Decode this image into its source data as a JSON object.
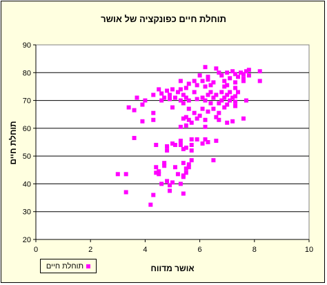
{
  "chart_data": {
    "type": "scatter",
    "title": "תוחלת חיים כפונקציה של אושר",
    "xlabel": "אושר מדווח",
    "ylabel": "תוחלת חיים",
    "xlim": [
      0,
      10
    ],
    "ylim": [
      20,
      90
    ],
    "xticks": [
      "0",
      "2",
      "4",
      "6",
      "8",
      "10"
    ],
    "yticks": [
      "20",
      "30",
      "40",
      "50",
      "60",
      "70",
      "80",
      "90"
    ],
    "grid": "horizontal",
    "legend": "bottom-left",
    "marker_color": "#ff00ff",
    "plot_background": "#ffffff",
    "chart_background": "#ffffe0",
    "series": [
      {
        "name": "תוחלת חיים",
        "points": [
          [
            6.2,
            82.0
          ],
          [
            6.6,
            81.5
          ],
          [
            6.7,
            80.0
          ],
          [
            7.0,
            80.0
          ],
          [
            7.2,
            80.5
          ],
          [
            7.5,
            80.0
          ],
          [
            7.6,
            79.5
          ],
          [
            7.7,
            80.5
          ],
          [
            7.8,
            81.0
          ],
          [
            8.2,
            80.5
          ],
          [
            6.0,
            79.0
          ],
          [
            6.3,
            78.5
          ],
          [
            6.8,
            79.0
          ],
          [
            7.1,
            78.0
          ],
          [
            7.3,
            79.5
          ],
          [
            7.4,
            78.5
          ],
          [
            7.6,
            78.0
          ],
          [
            7.8,
            79.0
          ],
          [
            8.2,
            77.0
          ],
          [
            5.3,
            77.0
          ],
          [
            5.8,
            77.0
          ],
          [
            6.1,
            77.0
          ],
          [
            6.3,
            77.5
          ],
          [
            6.5,
            76.5
          ],
          [
            6.9,
            77.0
          ],
          [
            7.3,
            76.5
          ],
          [
            7.6,
            77.0
          ],
          [
            5.6,
            76.0
          ],
          [
            5.9,
            75.5
          ],
          [
            6.2,
            75.0
          ],
          [
            6.4,
            75.5
          ],
          [
            6.9,
            75.0
          ],
          [
            7.0,
            75.5
          ],
          [
            7.3,
            74.5
          ],
          [
            4.5,
            74.0
          ],
          [
            4.8,
            73.5
          ],
          [
            5.0,
            74.0
          ],
          [
            5.3,
            74.0
          ],
          [
            5.5,
            74.5
          ],
          [
            5.8,
            73.0
          ],
          [
            6.4,
            73.0
          ],
          [
            6.8,
            73.0
          ],
          [
            7.1,
            73.0
          ],
          [
            7.4,
            73.0
          ],
          [
            4.3,
            72.0
          ],
          [
            4.6,
            72.5
          ],
          [
            4.9,
            72.0
          ],
          [
            5.2,
            73.0
          ],
          [
            5.4,
            72.0
          ],
          [
            6.3,
            72.0
          ],
          [
            6.6,
            72.0
          ],
          [
            7.0,
            72.0
          ],
          [
            7.3,
            71.5
          ],
          [
            3.7,
            71.0
          ],
          [
            4.7,
            71.0
          ],
          [
            5.1,
            71.0
          ],
          [
            5.5,
            71.0
          ],
          [
            5.9,
            70.5
          ],
          [
            6.1,
            71.0
          ],
          [
            6.5,
            71.0
          ],
          [
            6.9,
            71.0
          ],
          [
            7.2,
            71.0
          ],
          [
            4.0,
            70.0
          ],
          [
            4.6,
            70.0
          ],
          [
            4.9,
            70.5
          ],
          [
            5.3,
            70.0
          ],
          [
            5.6,
            70.0
          ],
          [
            6.2,
            70.0
          ],
          [
            6.8,
            70.0
          ],
          [
            7.1,
            70.0
          ],
          [
            7.3,
            69.5
          ],
          [
            7.7,
            70.0
          ],
          [
            5.4,
            69.0
          ],
          [
            6.4,
            69.0
          ],
          [
            6.7,
            69.0
          ],
          [
            7.0,
            68.5
          ],
          [
            7.3,
            68.0
          ],
          [
            3.4,
            67.5
          ],
          [
            3.9,
            68.5
          ],
          [
            5.0,
            67.5
          ],
          [
            5.6,
            67.0
          ],
          [
            6.1,
            67.0
          ],
          [
            6.5,
            67.0
          ],
          [
            6.9,
            67.5
          ],
          [
            3.6,
            66.5
          ],
          [
            4.3,
            65.5
          ],
          [
            5.8,
            65.5
          ],
          [
            6.3,
            66.0
          ],
          [
            6.7,
            65.5
          ],
          [
            5.5,
            64.0
          ],
          [
            6.0,
            64.5
          ],
          [
            6.6,
            64.0
          ],
          [
            3.9,
            62.5
          ],
          [
            4.3,
            63.0
          ],
          [
            5.4,
            63.5
          ],
          [
            5.6,
            63.0
          ],
          [
            5.7,
            62.0
          ],
          [
            5.9,
            63.5
          ],
          [
            6.2,
            63.0
          ],
          [
            6.7,
            63.0
          ],
          [
            7.0,
            62.0
          ],
          [
            7.2,
            62.5
          ],
          [
            7.6,
            63.5
          ],
          [
            5.3,
            60.5
          ],
          [
            5.5,
            61.0
          ],
          [
            6.2,
            60.5
          ],
          [
            3.6,
            56.5
          ],
          [
            5.7,
            56.0
          ],
          [
            5.9,
            56.0
          ],
          [
            6.2,
            56.0
          ],
          [
            6.6,
            55.5
          ],
          [
            5.3,
            55.5
          ],
          [
            6.1,
            54.5
          ],
          [
            6.3,
            55.0
          ],
          [
            4.4,
            54.0
          ],
          [
            4.8,
            53.5
          ],
          [
            5.0,
            54.5
          ],
          [
            5.1,
            54.0
          ],
          [
            5.3,
            54.0
          ],
          [
            5.5,
            53.0
          ],
          [
            5.7,
            54.0
          ],
          [
            4.8,
            52.0
          ],
          [
            5.4,
            52.5
          ],
          [
            5.7,
            52.0
          ],
          [
            6.5,
            48.5
          ],
          [
            4.7,
            47.5
          ],
          [
            5.4,
            47.5
          ],
          [
            5.7,
            48.5
          ],
          [
            5.6,
            47.0
          ],
          [
            4.4,
            46.0
          ],
          [
            4.7,
            46.5
          ],
          [
            5.1,
            46.0
          ],
          [
            5.5,
            45.5
          ],
          [
            5.6,
            46.0
          ],
          [
            4.5,
            44.5
          ],
          [
            4.4,
            44.0
          ],
          [
            4.5,
            43.5
          ],
          [
            5.2,
            43.5
          ],
          [
            5.4,
            43.0
          ],
          [
            5.5,
            44.0
          ],
          [
            3.0,
            43.5
          ],
          [
            3.3,
            43.5
          ],
          [
            5.4,
            42.5
          ],
          [
            4.8,
            41.0
          ],
          [
            5.0,
            40.5
          ],
          [
            4.6,
            40.0
          ],
          [
            5.3,
            40.0
          ],
          [
            4.9,
            39.5
          ],
          [
            3.3,
            37.0
          ],
          [
            4.9,
            37.5
          ],
          [
            4.3,
            36.0
          ],
          [
            5.4,
            36.5
          ],
          [
            4.2,
            32.5
          ]
        ]
      }
    ]
  }
}
